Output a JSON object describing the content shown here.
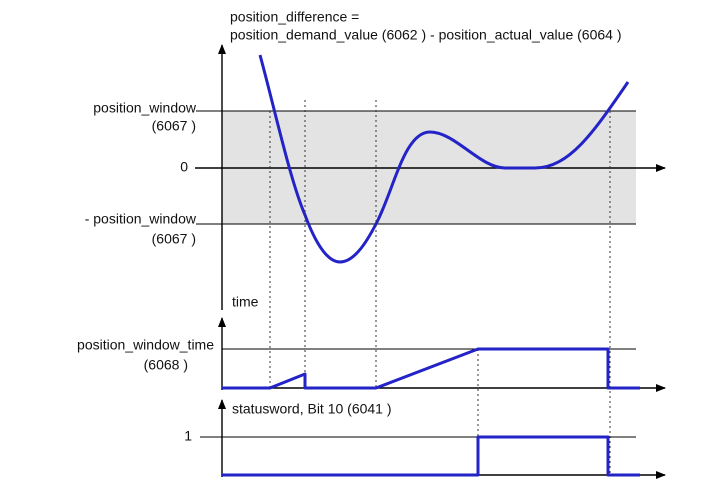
{
  "title": {
    "line1": "position_difference =",
    "line2": "position_demand_value (6062 ) - position_actual_value (6064 )"
  },
  "top_plot": {
    "upper_label": "position_window",
    "upper_index": "(6067 )",
    "zero_label": "0",
    "lower_label": "- position_window",
    "lower_index": "(6067 )",
    "time_label": "time"
  },
  "middle_plot": {
    "label": "position_window_time",
    "index": "(6068 )"
  },
  "bottom_plot": {
    "label": "statusword, Bit 10 (6041 )",
    "level_label": "1"
  }
}
